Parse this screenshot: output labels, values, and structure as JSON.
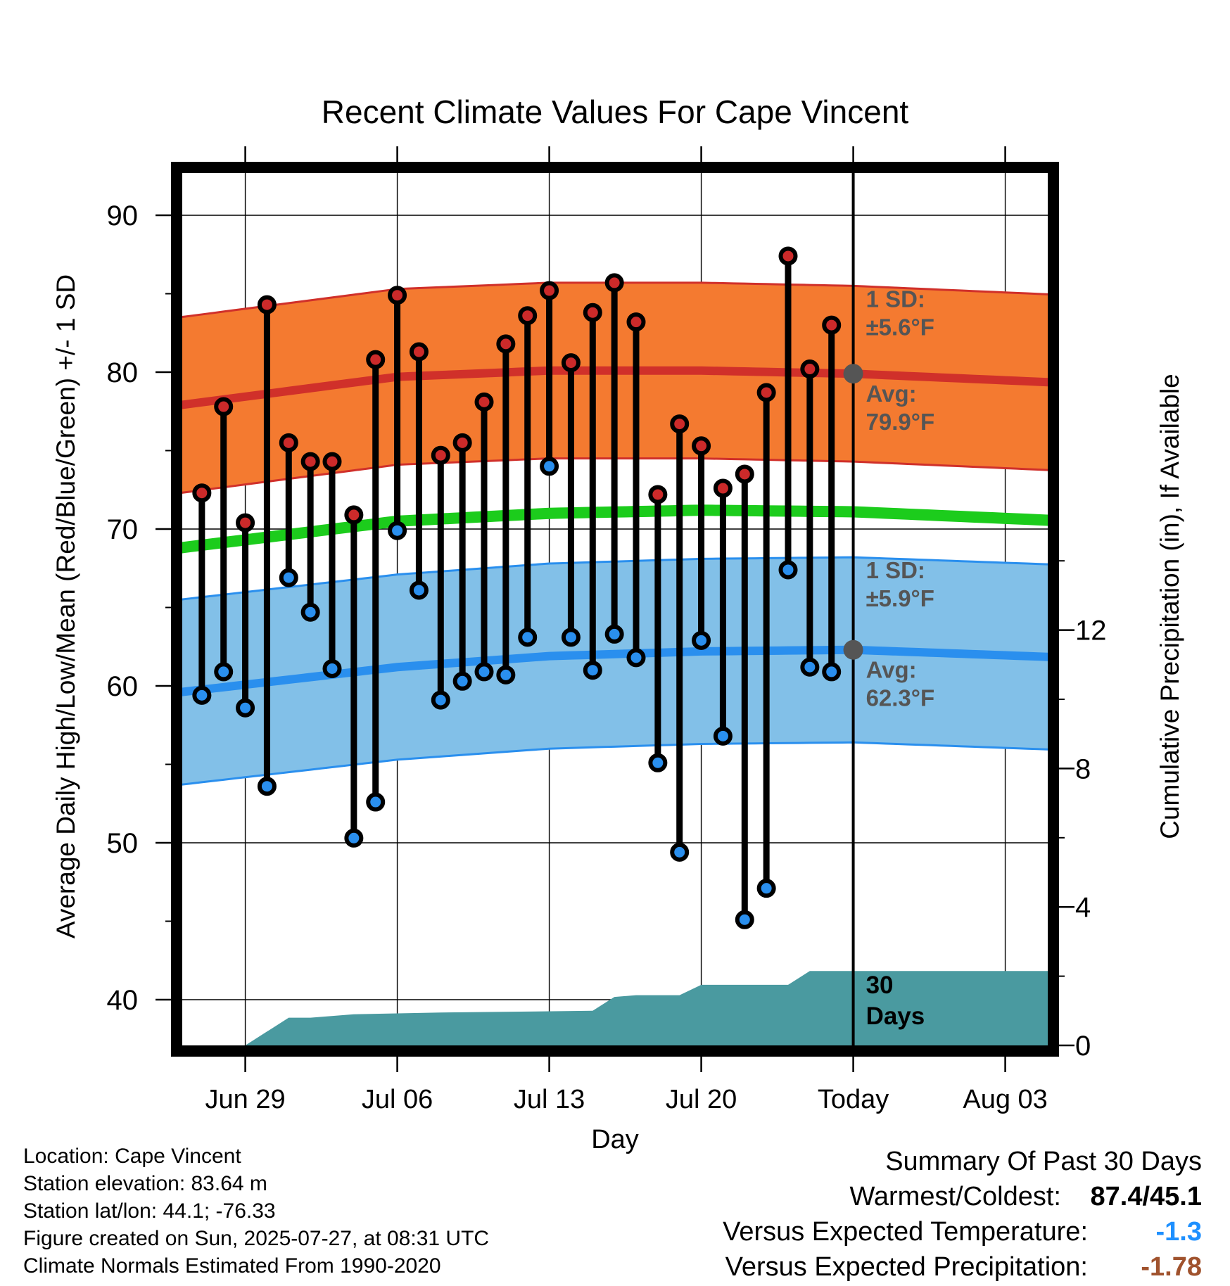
{
  "chart_data": {
    "type": "line",
    "title": "Recent Climate Values For Cape Vincent",
    "xlabel": "Day",
    "ylabel": "Average Daily High/Low/Mean (Red/Blue/Green) +/- 1 SD",
    "y2label": "Cumulative Precipitation (in), If Available",
    "ylim": [
      37.5,
      92.5
    ],
    "y2lim": [
      0,
      24
    ],
    "yticks": [
      "40",
      "50",
      "60",
      "70",
      "80",
      "90"
    ],
    "y2ticks": [
      "0",
      "4",
      "8",
      "12"
    ],
    "xlim": [
      "2025-06-26",
      "2025-08-06"
    ],
    "xticks": [
      {
        "date": "2025-06-29",
        "label": "Jun 29"
      },
      {
        "date": "2025-07-06",
        "label": "Jul 06"
      },
      {
        "date": "2025-07-13",
        "label": "Jul 13"
      },
      {
        "date": "2025-07-20",
        "label": "Jul 20"
      },
      {
        "date": "2025-07-27",
        "label": "Today"
      },
      {
        "date": "2025-08-03",
        "label": "Aug 03"
      }
    ],
    "grid": true,
    "today": "2025-07-27",
    "days": [
      {
        "date": "2025-06-27",
        "high": 72.3,
        "low": 59.4
      },
      {
        "date": "2025-06-28",
        "high": 77.8,
        "low": 60.9
      },
      {
        "date": "2025-06-29",
        "high": 70.4,
        "low": 58.6
      },
      {
        "date": "2025-06-30",
        "high": 84.3,
        "low": 53.6
      },
      {
        "date": "2025-07-01",
        "high": 75.5,
        "low": 66.9
      },
      {
        "date": "2025-07-02",
        "high": 74.3,
        "low": 64.7
      },
      {
        "date": "2025-07-03",
        "high": 74.3,
        "low": 61.1
      },
      {
        "date": "2025-07-04",
        "high": 70.9,
        "low": 50.3
      },
      {
        "date": "2025-07-05",
        "high": 80.8,
        "low": 52.6
      },
      {
        "date": "2025-07-06",
        "high": 84.9,
        "low": 69.9
      },
      {
        "date": "2025-07-07",
        "high": 81.3,
        "low": 66.1
      },
      {
        "date": "2025-07-08",
        "high": 74.7,
        "low": 59.1
      },
      {
        "date": "2025-07-09",
        "high": 75.5,
        "low": 60.3
      },
      {
        "date": "2025-07-10",
        "high": 78.1,
        "low": 60.9
      },
      {
        "date": "2025-07-11",
        "high": 81.8,
        "low": 60.7
      },
      {
        "date": "2025-07-12",
        "high": 83.6,
        "low": 63.1
      },
      {
        "date": "2025-07-13",
        "high": 85.2,
        "low": 74.0
      },
      {
        "date": "2025-07-14",
        "high": 80.6,
        "low": 63.1
      },
      {
        "date": "2025-07-15",
        "high": 83.8,
        "low": 61.0
      },
      {
        "date": "2025-07-16",
        "high": 85.7,
        "low": 63.3
      },
      {
        "date": "2025-07-17",
        "high": 83.2,
        "low": 61.8
      },
      {
        "date": "2025-07-18",
        "high": 72.2,
        "low": 55.1
      },
      {
        "date": "2025-07-19",
        "high": 76.7,
        "low": 49.4
      },
      {
        "date": "2025-07-20",
        "high": 75.3,
        "low": 62.9
      },
      {
        "date": "2025-07-21",
        "high": 72.6,
        "low": 56.8
      },
      {
        "date": "2025-07-22",
        "high": 73.5,
        "low": 45.1
      },
      {
        "date": "2025-07-23",
        "high": 78.7,
        "low": 47.1
      },
      {
        "date": "2025-07-24",
        "high": 87.4,
        "low": 67.4
      },
      {
        "date": "2025-07-25",
        "high": 80.2,
        "low": 61.2
      },
      {
        "date": "2025-07-26",
        "high": 83.0,
        "low": 60.9
      }
    ],
    "normals": {
      "dates": [
        "2025-06-26",
        "2025-07-06",
        "2025-07-13",
        "2025-07-20",
        "2025-07-27",
        "2025-08-06"
      ],
      "high_mean": [
        77.9,
        79.7,
        80.1,
        80.1,
        79.9,
        79.3
      ],
      "high_sd": 5.6,
      "low_mean": [
        59.6,
        61.2,
        61.9,
        62.2,
        62.3,
        61.8
      ],
      "low_sd": 5.9,
      "mean": [
        68.8,
        70.5,
        71.0,
        71.2,
        71.1,
        70.5
      ]
    },
    "precip_cumulative": {
      "dates": [
        "2025-06-26",
        "2025-06-29",
        "2025-07-01",
        "2025-07-02",
        "2025-07-04",
        "2025-07-08",
        "2025-07-15",
        "2025-07-16",
        "2025-07-17",
        "2025-07-18",
        "2025-07-19",
        "2025-07-20",
        "2025-07-24",
        "2025-07-25",
        "2025-08-06"
      ],
      "values": [
        0.0,
        0.0,
        0.8,
        0.8,
        0.9,
        0.95,
        1.0,
        1.4,
        1.45,
        1.45,
        1.45,
        1.75,
        1.75,
        2.15,
        2.15
      ]
    },
    "annotations": {
      "high_sd_line1": "1 SD:",
      "high_sd_line2": "±5.6°F",
      "high_avg_line1": "Avg:",
      "high_avg_line2": "79.9°F",
      "low_sd_line1": "1 SD:",
      "low_sd_line2": "±5.9°F",
      "low_avg_line1": "Avg:",
      "low_avg_line2": "62.3°F",
      "days_line1": "30",
      "days_line2": "Days"
    },
    "colors": {
      "high_band": "#f47a30",
      "high_line": "#d0302a",
      "low_band": "#82c0e8",
      "low_line": "#2a8fee",
      "mean_line": "#1ccc1c",
      "precip": "#4a9aa0",
      "high_dot": "#cc2a2a",
      "low_dot": "#2a8fee",
      "annotation_text": "#555555"
    }
  },
  "info": {
    "location": "Location: Cape Vincent",
    "elevation": "Station elevation: 83.64 m",
    "latlon": "Station lat/lon: 44.1; -76.33",
    "created": "Figure created on Sun, 2025-07-27, at 08:31 UTC",
    "normals": "Climate Normals Estimated From 1990-2020"
  },
  "summary": {
    "title": "Summary Of Past 30 Days",
    "warmest_label": "Warmest/Coldest:",
    "warmest_value": "87.4/45.1",
    "temp_label": "Versus Expected Temperature:",
    "temp_value": "-1.3",
    "precip_label": "Versus Expected Precipitation:",
    "precip_value": "-1.78"
  }
}
